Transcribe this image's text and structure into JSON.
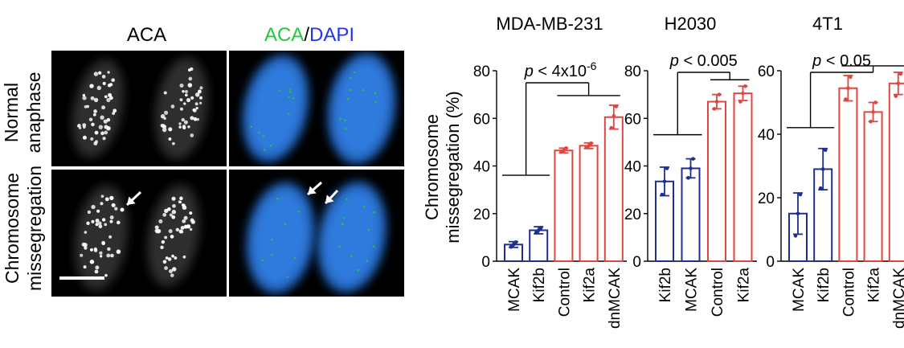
{
  "micrograph": {
    "col_titles": {
      "aca": "ACA",
      "merge_aca": "ACA",
      "merge_sep": "/",
      "merge_dapi": "DAPI"
    },
    "row_labels": {
      "normal": [
        "Normal",
        "anaphase"
      ],
      "missegregation": [
        "Chromosome",
        "missegregation"
      ]
    },
    "colors": {
      "aca": "#22c83a",
      "dapi": "#2233ee",
      "dapi_stain": "#2a7ff0",
      "background": "#000000"
    }
  },
  "ylabel_lines": [
    "Chromosome",
    "missegregation (%)"
  ],
  "colors": {
    "knockdown": "#1f2f8f",
    "control": "#e0463f",
    "annotation": "#000000"
  },
  "chart_data": [
    {
      "type": "bar",
      "title": "MDA-MB-231",
      "ylim": [
        0,
        80
      ],
      "yticks": [
        0,
        20,
        40,
        60,
        80
      ],
      "categories": [
        "MCAK",
        "Kif2b",
        "Control",
        "Kif2a",
        "dnMCAK"
      ],
      "values": [
        7,
        13,
        46.5,
        48.5,
        60.5
      ],
      "errors": [
        1.2,
        1.5,
        1.0,
        1.2,
        5.0
      ],
      "groups": [
        "knockdown",
        "knockdown",
        "control",
        "control",
        "control"
      ],
      "points": [
        [
          6,
          7,
          8
        ],
        [
          12,
          13,
          14
        ],
        [
          46,
          46.5,
          47.5
        ],
        [
          48,
          48.5,
          49.5
        ],
        [
          56,
          61,
          65
        ]
      ],
      "annotation": {
        "p": "p",
        "text": " < 4x10",
        "exp": "-6"
      }
    },
    {
      "type": "bar",
      "title": "H2030",
      "ylim": [
        0,
        80
      ],
      "yticks": [
        0,
        20,
        40,
        60,
        80
      ],
      "categories": [
        "Kif2b",
        "MCAK",
        "Control",
        "Kif2a"
      ],
      "values": [
        33.5,
        39,
        67,
        70.5
      ],
      "errors": [
        6,
        4,
        3,
        3
      ],
      "groups": [
        "knockdown",
        "knockdown",
        "control",
        "control"
      ],
      "points": [
        [
          28,
          33.5,
          39
        ],
        [
          35,
          39,
          43
        ],
        [
          64,
          67,
          70
        ],
        [
          67,
          70.5,
          73.5
        ]
      ],
      "annotation": {
        "p": "p",
        "text": " < 0.005",
        "exp": ""
      }
    },
    {
      "type": "bar",
      "title": "4T1",
      "ylim": [
        0,
        60
      ],
      "yticks": [
        0,
        20,
        40,
        60
      ],
      "categories": [
        "MCAK",
        "Kif2b",
        "Control",
        "Kif2a",
        "dnMCAK"
      ],
      "values": [
        15,
        29,
        54.5,
        47,
        56
      ],
      "errors": [
        6.5,
        6.5,
        4,
        3,
        3.5
      ],
      "groups": [
        "knockdown",
        "knockdown",
        "control",
        "control",
        "control"
      ],
      "points": [
        [
          8,
          15,
          21
        ],
        [
          23,
          29,
          35
        ],
        [
          51,
          54.5,
          58
        ],
        [
          44,
          47,
          50
        ],
        [
          52,
          56,
          59
        ]
      ],
      "annotation": {
        "p": "p",
        "text": " < 0.05",
        "exp": ""
      }
    }
  ]
}
